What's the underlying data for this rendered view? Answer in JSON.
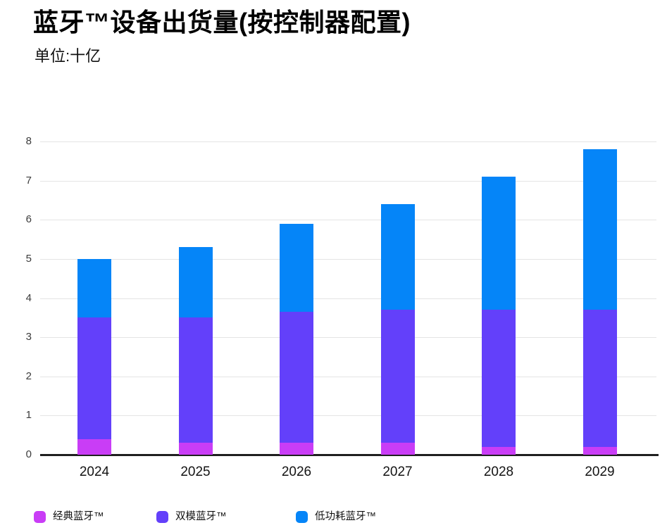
{
  "header": {
    "title": "蓝牙™设备出货量(按控制器配置)",
    "subtitle": "单位:十亿"
  },
  "chart_data": {
    "type": "bar",
    "stacked": true,
    "title": "蓝牙™设备出货量(按控制器配置)",
    "subtitle_unit": "单位:十亿",
    "categories": [
      "2024",
      "2025",
      "2026",
      "2027",
      "2028",
      "2029"
    ],
    "series": [
      {
        "name": "经典蓝牙™",
        "color": "#c93df6",
        "values": [
          0.4,
          0.3,
          0.3,
          0.3,
          0.2,
          0.2
        ]
      },
      {
        "name": "双模蓝牙™",
        "color": "#6340fa",
        "values": [
          3.1,
          3.2,
          3.35,
          3.4,
          3.5,
          3.5
        ]
      },
      {
        "name": "低功耗蓝牙™",
        "color": "#0585f8",
        "values": [
          1.5,
          1.8,
          2.25,
          2.7,
          3.4,
          4.1
        ]
      }
    ],
    "stack_totals": [
      5.0,
      5.3,
      5.9,
      6.4,
      7.1,
      7.8
    ],
    "y_axis": {
      "min": 0,
      "max": 8,
      "step": 1,
      "tick_labels": [
        "0",
        "1",
        "2",
        "3",
        "4",
        "5",
        "6",
        "7",
        "8"
      ]
    },
    "grid": true,
    "legend_position": "bottom"
  },
  "colors": {
    "classic": "#c93df6",
    "dual_mode": "#6340fa",
    "low_energy": "#0585f8",
    "gridline": "#e4e4e4",
    "axis_line": "#1f1f1f",
    "y_label": "#3c3c3c",
    "x_label": "#141414",
    "background": "#ffffff"
  }
}
